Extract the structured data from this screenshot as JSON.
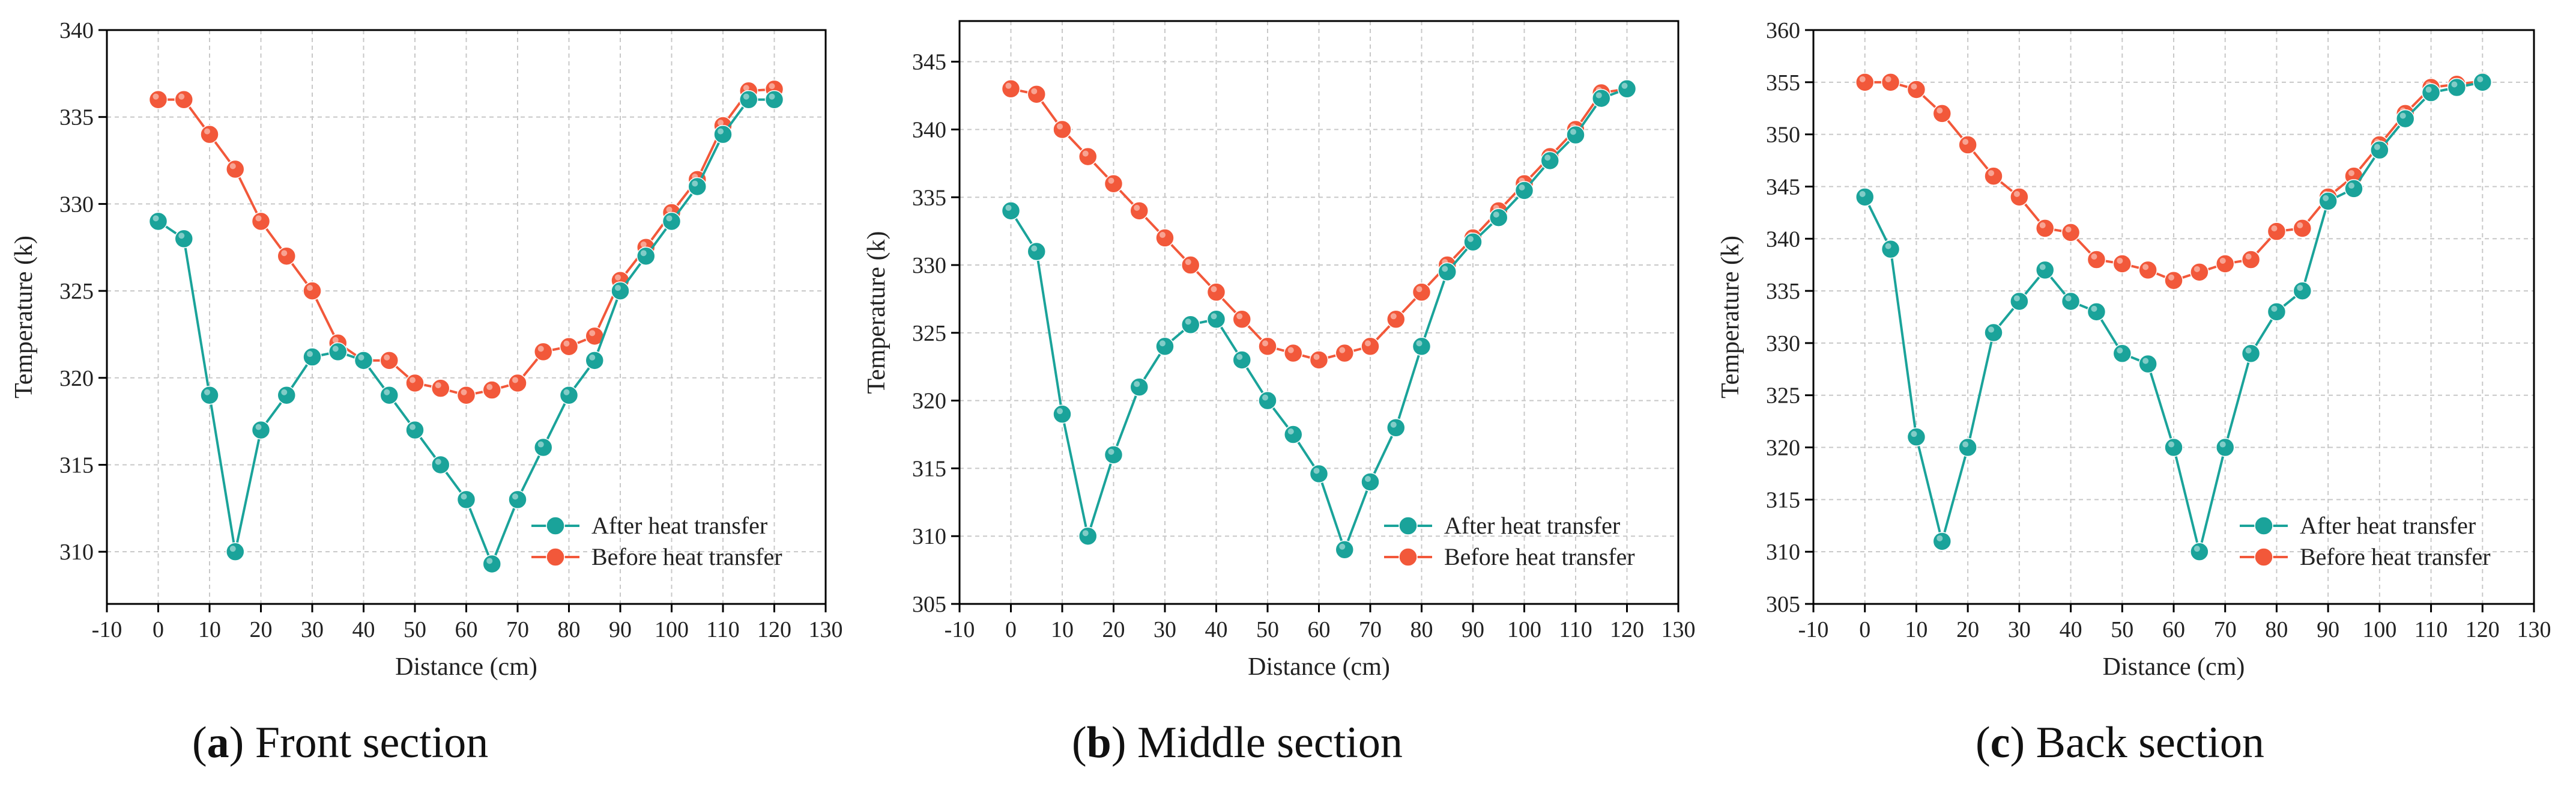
{
  "colors": {
    "after": "#1aa39a",
    "before": "#f2583a",
    "grid": "#c8c8c8",
    "axis": "#000000"
  },
  "chart_data": [
    {
      "type": "line",
      "caption_letter": "a",
      "caption_text": " Front section",
      "xlabel": "Distance (cm)",
      "ylabel": "Temperature (k)",
      "xlim": [
        -10,
        130
      ],
      "ylim": [
        307,
        340
      ],
      "xticks": [
        -10,
        0,
        10,
        20,
        30,
        40,
        50,
        60,
        70,
        80,
        90,
        100,
        110,
        120,
        130
      ],
      "yticks": [
        310,
        315,
        320,
        325,
        330,
        335,
        340
      ],
      "grid": true,
      "legend_position": "bottom-right",
      "x": [
        0,
        5,
        10,
        15,
        20,
        25,
        30,
        35,
        40,
        45,
        50,
        55,
        60,
        65,
        70,
        75,
        80,
        85,
        90,
        95,
        100,
        105,
        110,
        115,
        120
      ],
      "series": [
        {
          "name": "After heat transfer",
          "key": "after",
          "values": [
            329,
            328,
            319,
            310,
            317,
            319,
            321.2,
            321.5,
            321,
            319,
            317,
            315,
            313,
            309.3,
            313,
            316,
            319,
            321,
            325,
            327,
            329,
            331,
            334,
            336,
            336
          ]
        },
        {
          "name": "Before heat transfer",
          "key": "before",
          "values": [
            336,
            336,
            334,
            332,
            329,
            327,
            325,
            322,
            321,
            321,
            319.7,
            319.4,
            319,
            319.3,
            319.7,
            321.5,
            321.8,
            322.4,
            325.6,
            327.5,
            329.5,
            331.4,
            334.5,
            336.5,
            336.6
          ]
        }
      ]
    },
    {
      "type": "line",
      "caption_letter": "b",
      "caption_text": " Middle section",
      "xlabel": "Distance (cm)",
      "ylabel": "Temperature (k)",
      "xlim": [
        -10,
        130
      ],
      "ylim": [
        305,
        348
      ],
      "xticks": [
        -10,
        0,
        10,
        20,
        30,
        40,
        50,
        60,
        70,
        80,
        90,
        100,
        110,
        120,
        130
      ],
      "yticks": [
        305,
        310,
        315,
        320,
        325,
        330,
        335,
        340,
        345
      ],
      "grid": true,
      "legend_position": "bottom-right",
      "x": [
        0,
        5,
        10,
        15,
        20,
        25,
        30,
        35,
        40,
        45,
        50,
        55,
        60,
        65,
        70,
        75,
        80,
        85,
        90,
        95,
        100,
        105,
        110,
        115,
        120
      ],
      "series": [
        {
          "name": "After heat transfer",
          "key": "after",
          "values": [
            334,
            331,
            319,
            310,
            316,
            321,
            324,
            325.6,
            326,
            323,
            320,
            317.5,
            314.6,
            309,
            314,
            318,
            324,
            329.5,
            331.7,
            333.5,
            335.5,
            337.7,
            339.6,
            342.3,
            343
          ]
        },
        {
          "name": "Before heat transfer",
          "key": "before",
          "values": [
            343,
            342.6,
            340,
            338,
            336,
            334,
            332,
            330,
            328,
            326,
            324,
            323.5,
            323,
            323.5,
            324,
            326,
            328,
            330,
            332,
            334,
            336,
            338,
            340,
            342.7,
            343
          ]
        }
      ]
    },
    {
      "type": "line",
      "caption_letter": "c",
      "caption_text": " Back section",
      "xlabel": "Distance (cm)",
      "ylabel": "Temperature (k)",
      "xlim": [
        -10,
        130
      ],
      "ylim": [
        305,
        360
      ],
      "xticks": [
        -10,
        0,
        10,
        20,
        30,
        40,
        50,
        60,
        70,
        80,
        90,
        100,
        110,
        120,
        130
      ],
      "yticks": [
        305,
        310,
        315,
        320,
        325,
        330,
        335,
        340,
        345,
        350,
        355,
        360
      ],
      "grid": true,
      "legend_position": "bottom-right",
      "x": [
        0,
        5,
        10,
        15,
        20,
        25,
        30,
        35,
        40,
        45,
        50,
        55,
        60,
        65,
        70,
        75,
        80,
        85,
        90,
        95,
        100,
        105,
        110,
        115,
        120
      ],
      "series": [
        {
          "name": "After heat transfer",
          "key": "after",
          "values": [
            344,
            339,
            321,
            311,
            320,
            331,
            334,
            337,
            334,
            333,
            329,
            328,
            320,
            310,
            320,
            329,
            333,
            335,
            343.6,
            344.8,
            348.5,
            351.5,
            354,
            354.5,
            355
          ]
        },
        {
          "name": "Before heat transfer",
          "key": "before",
          "values": [
            355,
            355,
            354.3,
            352,
            349,
            346,
            344,
            341,
            340.6,
            338,
            337.6,
            337,
            336,
            336.8,
            337.6,
            338,
            340.7,
            341,
            344,
            346,
            349,
            352,
            354.5,
            354.8,
            355.1
          ]
        }
      ]
    }
  ]
}
